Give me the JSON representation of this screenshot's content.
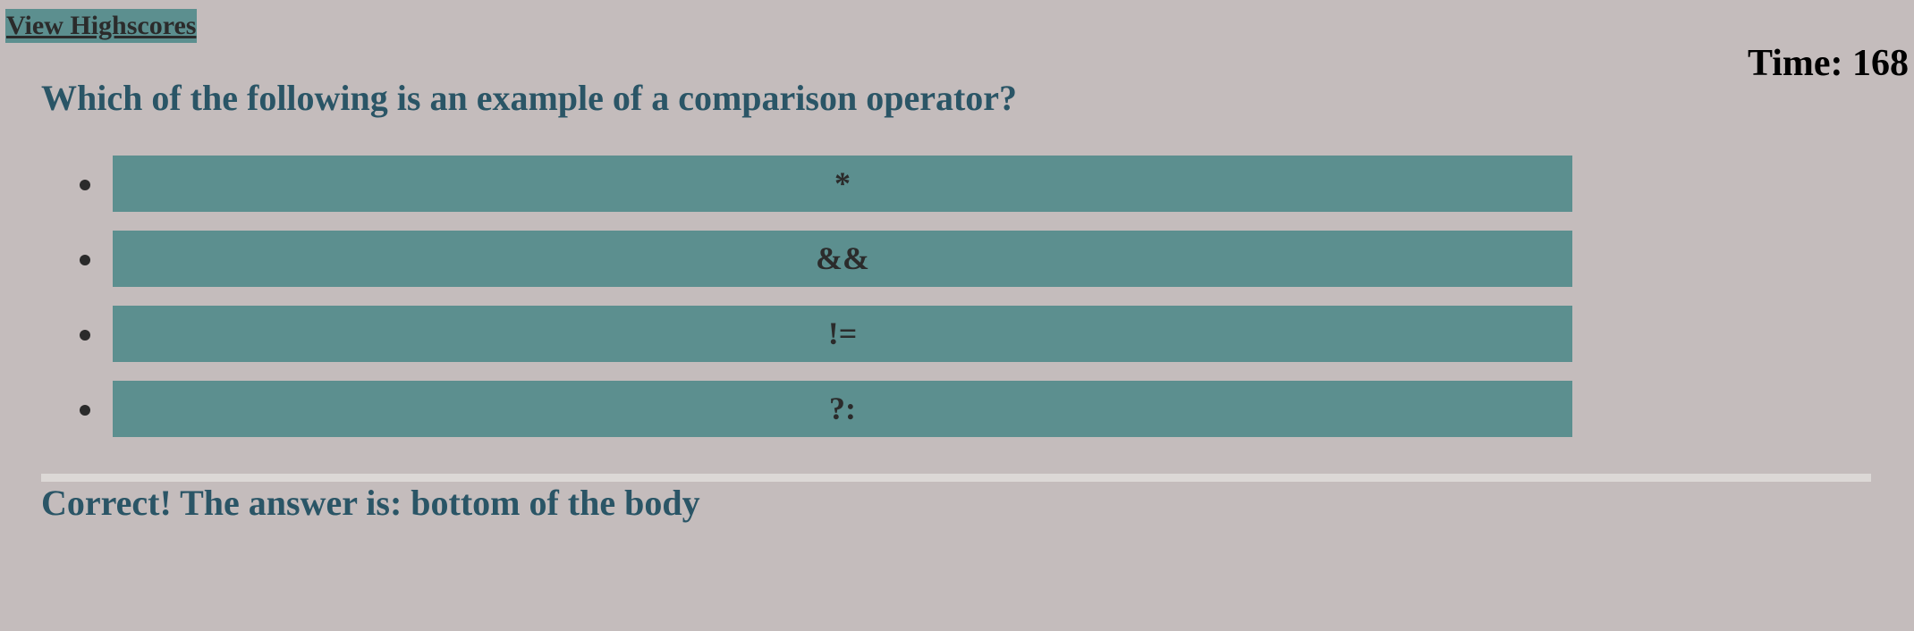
{
  "header": {
    "highscores_link": "View Highscores",
    "timer": "Time: 168"
  },
  "quiz": {
    "question": "Which of the following is an example of a comparison operator?",
    "choices": [
      "*",
      "&&",
      "!=",
      "?:"
    ],
    "feedback": "Correct! The answer is: bottom of the body"
  },
  "colors": {
    "background": "#c4bcbc",
    "button": "#5c8f8f",
    "heading": "#2a5566",
    "divider": "#dcd8d6"
  }
}
